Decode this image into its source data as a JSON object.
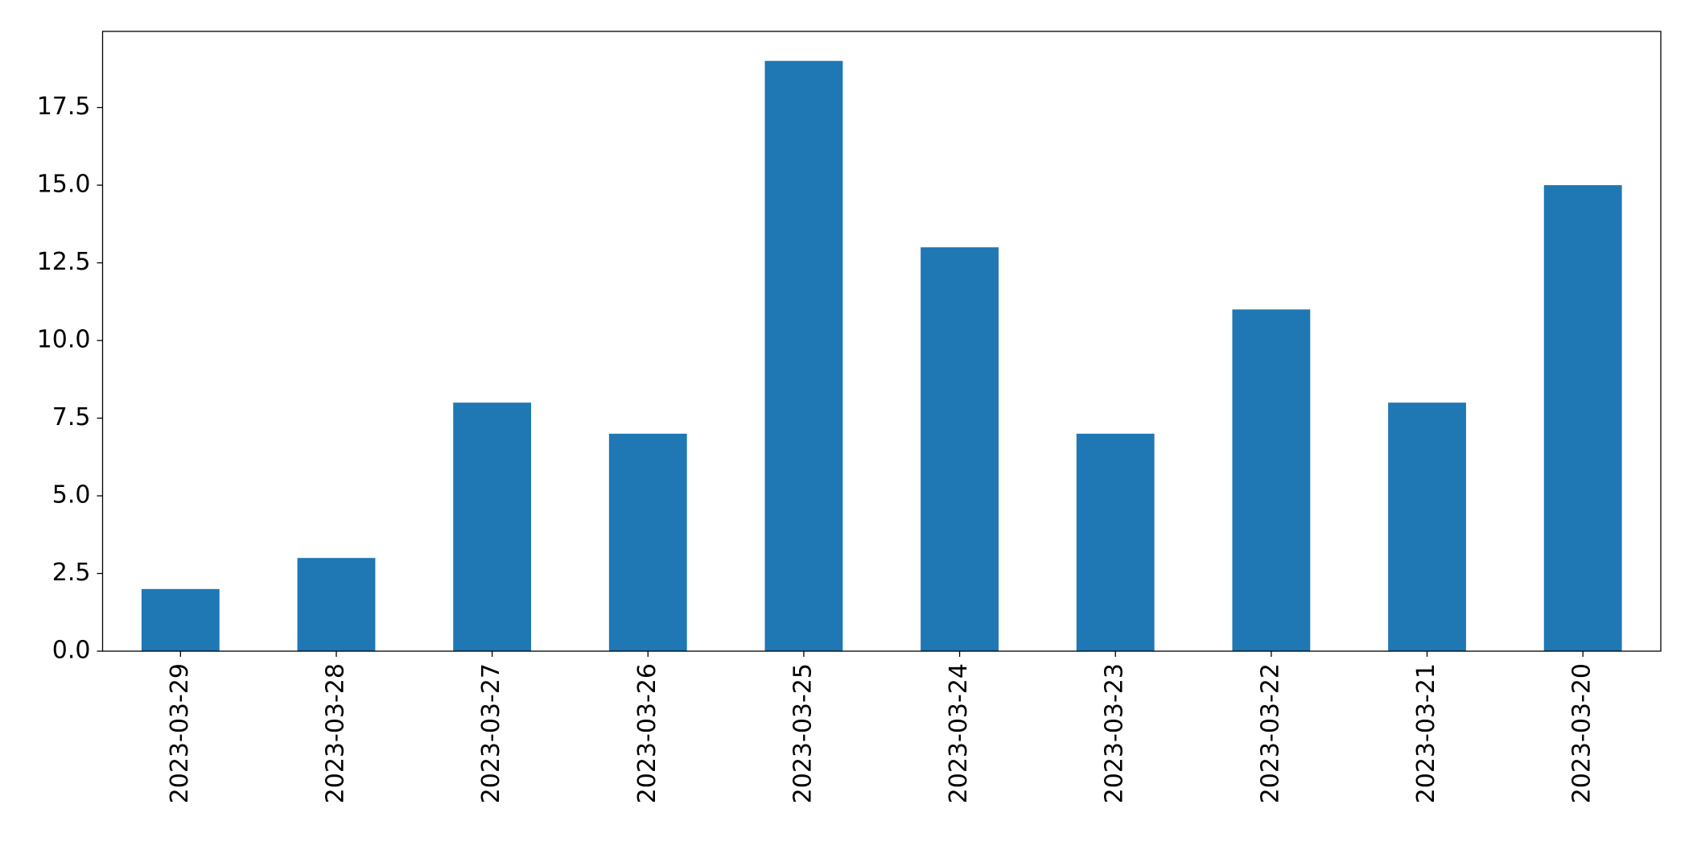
{
  "chart_data": {
    "type": "bar",
    "categories": [
      "2023-03-29",
      "2023-03-28",
      "2023-03-27",
      "2023-03-26",
      "2023-03-25",
      "2023-03-24",
      "2023-03-23",
      "2023-03-22",
      "2023-03-21",
      "2023-03-20"
    ],
    "values": [
      2,
      3,
      8,
      7,
      19,
      13,
      7,
      11,
      8,
      15
    ],
    "color": "#1f77b4",
    "ylim": [
      0,
      19.95
    ],
    "yticks": [
      {
        "value": 0,
        "label": "0.0"
      },
      2.5,
      {
        "value": 5,
        "label": "5.0"
      },
      7.5,
      {
        "value": 10,
        "label": "10.0"
      },
      12.5,
      {
        "value": 15,
        "label": "15.0"
      },
      17.5
    ],
    "grid": false
  }
}
